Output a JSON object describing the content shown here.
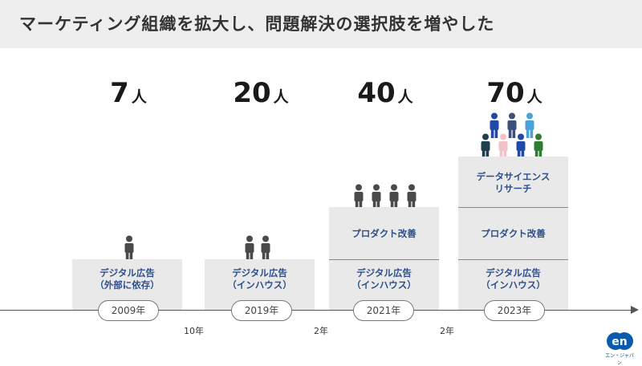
{
  "title": "マーケティング組織を拡大し、問題解決の選択肢を増やした",
  "unit_label": "人",
  "stages": [
    {
      "count": "7",
      "year": "2009年",
      "labels": [
        "デジタル広告\n（外部に依存）"
      ]
    },
    {
      "count": "20",
      "year": "2019年",
      "labels": [
        "デジタル広告\n（インハウス）"
      ]
    },
    {
      "count": "40",
      "year": "2021年",
      "labels": [
        "プロダクト改善",
        "デジタル広告\n（インハウス）"
      ]
    },
    {
      "count": "70",
      "year": "2023年",
      "labels": [
        "データサイエンス\nリサーチ",
        "プロダクト改善",
        "デジタル広告\n（インハウス）"
      ]
    }
  ],
  "gaps": [
    "10年",
    "2年",
    "2年"
  ],
  "colors": {
    "accent_text": "#2d4e8a",
    "person_gray": "#4a4a4a",
    "team_colors": [
      "#1f4aa8",
      "#3d4f7c",
      "#4aa3d8",
      "#1f3f4f",
      "#f1c2c8",
      "#1f4aa8",
      "#2e7d32"
    ]
  },
  "logo": {
    "mark": "en",
    "word": "エン・ジャパン"
  }
}
